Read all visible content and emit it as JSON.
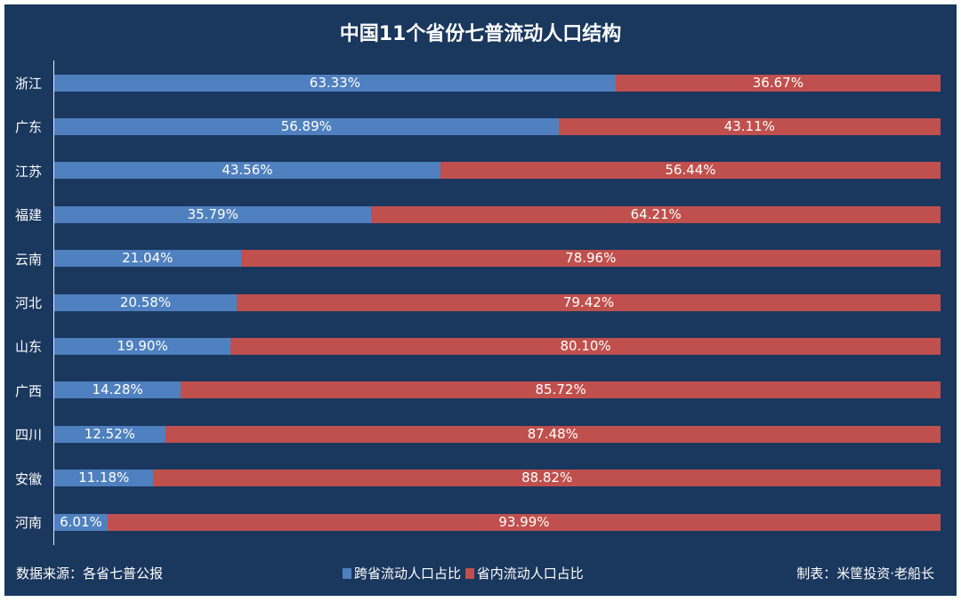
{
  "chart_data": {
    "type": "bar",
    "orientation": "horizontal",
    "stacked": true,
    "title": "中国11个省份七普流动人口结构",
    "categories": [
      "浙江",
      "广东",
      "江苏",
      "福建",
      "云南",
      "河北",
      "山东",
      "广西",
      "四川",
      "安徽",
      "河南"
    ],
    "series": [
      {
        "name": "跨省流动人口占比",
        "color": "#4f80bf",
        "values": [
          63.33,
          56.89,
          43.56,
          35.79,
          21.04,
          20.58,
          19.9,
          14.28,
          12.52,
          11.18,
          6.01
        ]
      },
      {
        "name": "省内流动人口占比",
        "color": "#c0504d",
        "values": [
          36.67,
          43.11,
          56.44,
          64.21,
          78.96,
          79.42,
          80.1,
          85.72,
          87.48,
          88.82,
          93.99
        ]
      }
    ],
    "xlim": [
      0,
      100
    ],
    "grid": false,
    "legend_position": "bottom"
  },
  "labels": {
    "blue": [
      "63.33%",
      "56.89%",
      "43.56%",
      "35.79%",
      "21.04%",
      "20.58%",
      "19.90%",
      "14.28%",
      "12.52%",
      "11.18%",
      "6.01%"
    ],
    "red": [
      "36.67%",
      "43.11%",
      "56.44%",
      "64.21%",
      "78.96%",
      "79.42%",
      "80.10%",
      "85.72%",
      "87.48%",
      "88.82%",
      "93.99%"
    ]
  },
  "footer": {
    "source": "数据来源：各省七普公报",
    "credit": "制表：米筐投资·老船长"
  },
  "watermark": "米筐投资"
}
